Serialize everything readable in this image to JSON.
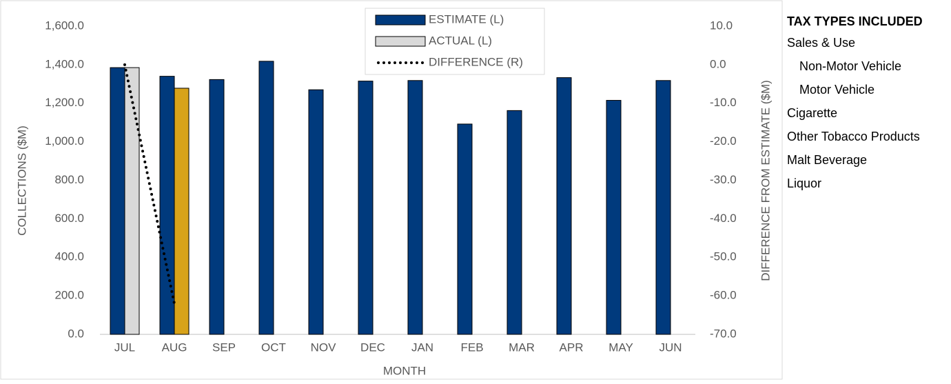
{
  "chart_data": {
    "type": "bar",
    "categories": [
      "JUL",
      "AUG",
      "SEP",
      "OCT",
      "NOV",
      "DEC",
      "JAN",
      "FEB",
      "MAR",
      "APR",
      "MAY",
      "JUN"
    ],
    "x_label": "MONTH",
    "y_label": "COLLECTIONS ($M)",
    "y2_label": "DIFFERENCE FROM ESTIMATE ($M)",
    "series": [
      {
        "name": "ESTIMATE (L)",
        "type": "bar",
        "color": "#003a7d",
        "values": [
          1385,
          1340,
          1323,
          1418,
          1270,
          1315,
          1318,
          1092,
          1162,
          1333,
          1215,
          1318
        ]
      },
      {
        "name": "ACTUAL (L)",
        "type": "bar",
        "color": "#d9d9d9",
        "colors": [
          "#d9d9d9",
          "#d8a31a",
          null,
          null,
          null,
          null,
          null,
          null,
          null,
          null,
          null,
          null
        ],
        "values": [
          1385,
          1278,
          null,
          null,
          null,
          null,
          null,
          null,
          null,
          null,
          null,
          null
        ]
      },
      {
        "name": "DIFFERENCE (R)",
        "type": "line",
        "color": "#000000",
        "axis": "y2",
        "values": [
          0,
          -62,
          null,
          null,
          null,
          null,
          null,
          null,
          null,
          null,
          null,
          null
        ]
      }
    ],
    "ylim": [
      0,
      1600
    ],
    "yticks": [
      {
        "value": 0,
        "label": "0.0"
      },
      {
        "value": 200,
        "label": "200.0"
      },
      {
        "value": 400,
        "label": "400.0"
      },
      {
        "value": 600,
        "label": "600.0"
      },
      {
        "value": 800,
        "label": "800.0"
      },
      {
        "value": 1000,
        "label": "1,000.0"
      },
      {
        "value": 1200,
        "label": "1,200.0"
      },
      {
        "value": 1400,
        "label": "1,400.0"
      },
      {
        "value": 1600,
        "label": "1,600.0"
      }
    ],
    "y2lim": [
      -70,
      10
    ],
    "y2ticks": [
      {
        "value": -70,
        "label": "-70.0"
      },
      {
        "value": -60,
        "label": "-60.0"
      },
      {
        "value": -50,
        "label": "-50.0"
      },
      {
        "value": -40,
        "label": "-40.0"
      },
      {
        "value": -30,
        "label": "-30.0"
      },
      {
        "value": -20,
        "label": "-20.0"
      },
      {
        "value": -10,
        "label": "-10.0"
      },
      {
        "value": 0,
        "label": "0.0"
      },
      {
        "value": 10,
        "label": "10.0"
      }
    ],
    "legend": "top"
  },
  "side_panel": {
    "title": "TAX TYPES INCLUDED",
    "items": [
      {
        "text": "Sales & Use",
        "level": 0
      },
      {
        "text": "Non-Motor Vehicle",
        "level": 1
      },
      {
        "text": "Motor Vehicle",
        "level": 1
      },
      {
        "text": "Cigarette",
        "level": 0
      },
      {
        "text": "Other Tobacco Products",
        "level": 0
      },
      {
        "text": "Malt Beverage",
        "level": 0
      },
      {
        "text": "Liquor",
        "level": 0
      }
    ]
  }
}
